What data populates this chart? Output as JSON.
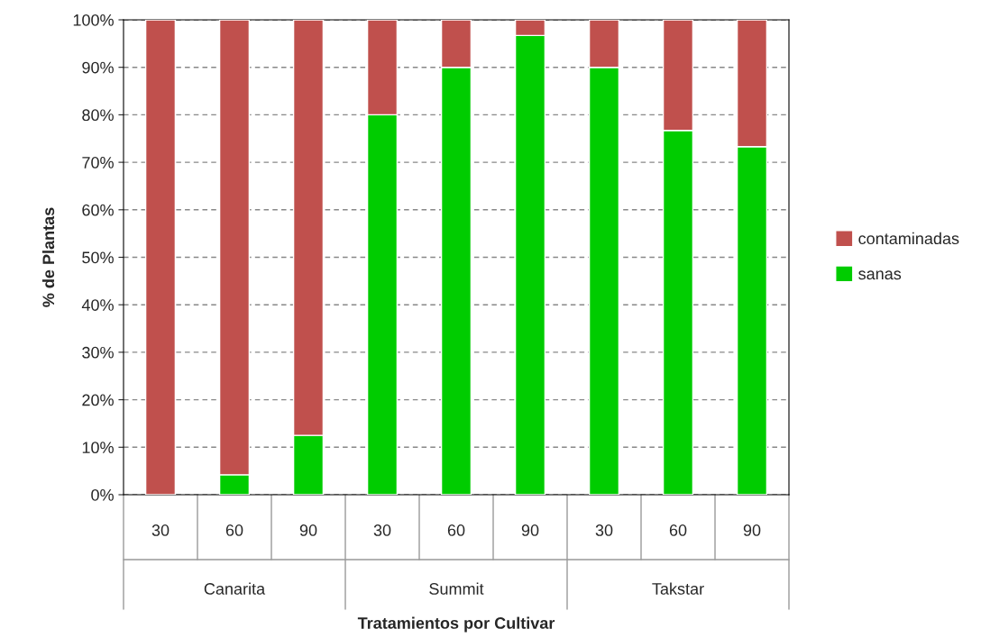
{
  "chart_data": {
    "type": "bar",
    "stacked": true,
    "xlabel": "Tratamientos por Cultivar",
    "ylabel": "% de Plantas",
    "categories": [
      "30",
      "60",
      "90",
      "30",
      "60",
      "90",
      "30",
      "60",
      "90"
    ],
    "annotations": [
      "Canarita",
      "Summit",
      "Takstar"
    ],
    "series": [
      {
        "name": "sanas",
        "color": "#00cc00",
        "values": [
          0,
          4.2,
          12.5,
          80,
          90,
          96.7,
          90,
          76.7,
          73.3
        ]
      },
      {
        "name": "contaminadas",
        "color": "#c0504d",
        "values": [
          100,
          95.8,
          87.5,
          20,
          10,
          3.3,
          10,
          23.3,
          26.7
        ]
      }
    ],
    "ylim": [
      0,
      100
    ],
    "yticks": [
      {
        "value": 0,
        "label": "0%"
      },
      {
        "value": 10,
        "label": "10%"
      },
      {
        "value": 20,
        "label": "20%"
      },
      {
        "value": 30,
        "label": "30%"
      },
      {
        "value": 40,
        "label": "40%"
      },
      {
        "value": 50,
        "label": "50%"
      },
      {
        "value": 60,
        "label": "60%"
      },
      {
        "value": 70,
        "label": "70%"
      },
      {
        "value": 80,
        "label": "80%"
      },
      {
        "value": 90,
        "label": "90%"
      },
      {
        "value": 100,
        "label": "100%"
      }
    ],
    "grid": "y",
    "legend": "right"
  }
}
